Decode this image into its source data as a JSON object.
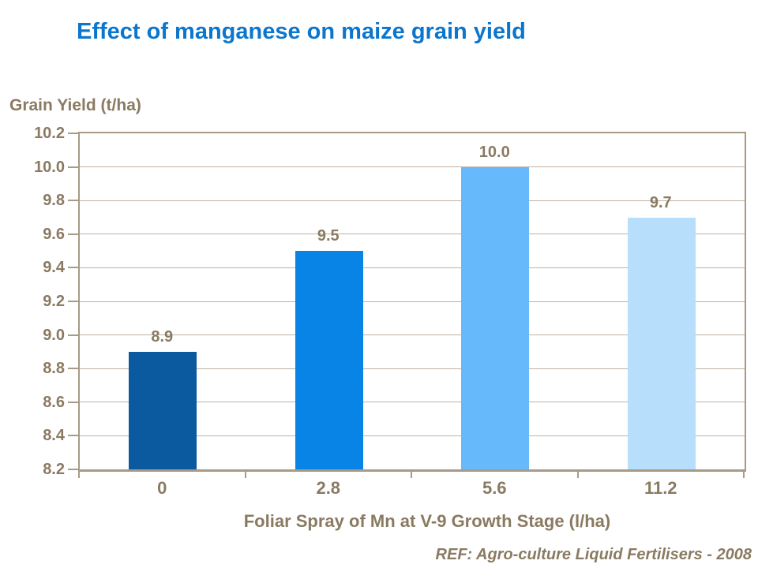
{
  "slide": {
    "background": "#FFFFFF",
    "title": "Effect of manganese on maize grain yield",
    "title_color": "#0B76CE",
    "footnote": "REF: Agro-culture Liquid Fertilisers - 2008"
  },
  "chart_data": {
    "type": "bar",
    "title": "Effect of manganese on maize grain yield",
    "categories": [
      "0",
      "2.8",
      "5.6",
      "11.2"
    ],
    "values": [
      8.9,
      9.5,
      10.0,
      9.7
    ],
    "data_labels": [
      "8.9",
      "9.5",
      "10.0",
      "9.7"
    ],
    "bar_colors": [
      "#0B5AA0",
      "#0884E6",
      "#66B9FB",
      "#B7DEFB"
    ],
    "ylabel": "Grain Yield (t/ha)",
    "xlabel": "Foliar Spray of Mn at V-9 Growth Stage (l/ha)",
    "ylim": [
      8.2,
      10.2
    ],
    "ytick_step": 0.2,
    "yticks": [
      "10.2",
      "10.0",
      "9.8",
      "9.6",
      "9.4",
      "9.2",
      "9.0",
      "8.8",
      "8.6",
      "8.4",
      "8.2"
    ],
    "grid": true,
    "legend": false,
    "text_color": "#8A7A62",
    "gridline_color": "#BFB3A1",
    "axis_color": "#A79A87"
  }
}
